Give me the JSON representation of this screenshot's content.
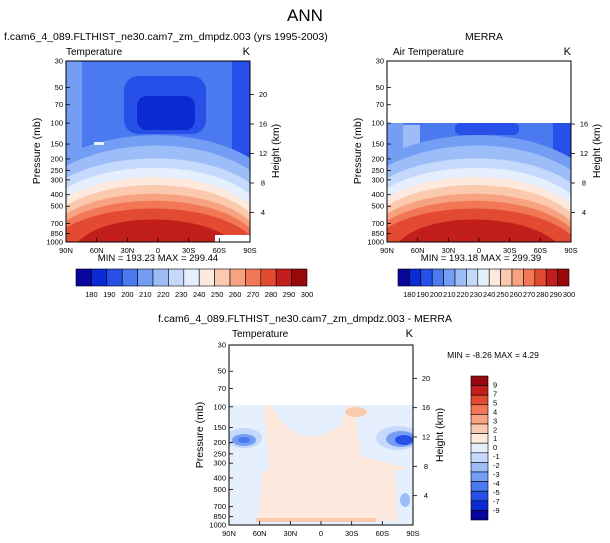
{
  "figure_title": "ANN",
  "colors": {
    "temperature_scale": [
      "#07059c",
      "#0c2ad1",
      "#2650e8",
      "#4b79f0",
      "#739ef4",
      "#9cbdf7",
      "#c4d9fb",
      "#e6effd",
      "#fde9dd",
      "#fbc9ae",
      "#f7a382",
      "#f27757",
      "#e24a32",
      "#c21e1c",
      "#98070c"
    ],
    "difference_scale": [
      "#07059c",
      "#0c2ad1",
      "#2650e8",
      "#4b79f0",
      "#739ef4",
      "#9cbdf7",
      "#c4d9fb",
      "#e6effd",
      "#fde9dd",
      "#fbc9ae",
      "#f7a382",
      "#f27757",
      "#e24a32",
      "#c21e1c",
      "#98070c"
    ]
  },
  "chart_data": [
    {
      "type": "heatmap",
      "panel": "model",
      "title": "f.cam6_4_089.FLTHIST_ne30.cam7_zm_dmpdz.003 (yrs 1995-2003)",
      "left_label": "Temperature",
      "right_label": "K",
      "ylabel": "Pressure (mb)",
      "ylabel_right": "Height (km)",
      "x_ticks": [
        "90N",
        "60N",
        "30N",
        "0",
        "30S",
        "60S",
        "90S"
      ],
      "y_ticks": [
        30,
        50,
        70,
        100,
        150,
        200,
        250,
        300,
        400,
        500,
        700,
        850,
        1000
      ],
      "height_ticks": [
        20,
        16,
        12,
        8,
        4
      ],
      "stats": "MIN = 193.23  MAX = 299.44",
      "min": 193.23,
      "max": 299.44
    },
    {
      "type": "heatmap",
      "panel": "obs",
      "title": "MERRA",
      "left_label": "Air Temperature",
      "right_label": "K",
      "ylabel": "Pressure (mb)",
      "ylabel_right": "Height (km)",
      "x_ticks": [
        "90N",
        "60N",
        "30N",
        "0",
        "30S",
        "60S",
        "90S"
      ],
      "y_ticks": [
        30,
        50,
        70,
        100,
        150,
        200,
        250,
        300,
        400,
        500,
        700,
        850,
        1000
      ],
      "height_ticks": [
        16,
        12,
        8,
        4
      ],
      "stats": "MIN = 193.18  MAX = 299.39",
      "min": 193.18,
      "max": 299.39,
      "data_top_mb": 100
    },
    {
      "type": "heatmap",
      "panel": "difference",
      "title": "f.cam6_4_089.FLTHIST_ne30.cam7_zm_dmpdz.003 - MERRA",
      "left_label": "Temperature",
      "right_label": "K",
      "ylabel": "Pressure (mb)",
      "ylabel_right": "Height (km)",
      "x_ticks": [
        "90N",
        "60N",
        "30N",
        "0",
        "30S",
        "60S",
        "90S"
      ],
      "y_ticks": [
        30,
        50,
        70,
        100,
        150,
        200,
        250,
        300,
        400,
        500,
        700,
        850,
        1000
      ],
      "height_ticks": [
        20,
        16,
        12,
        8,
        4
      ],
      "stats": "MIN =  -8.26  MAX =   4.29",
      "min": -8.26,
      "max": 4.29,
      "data_top_mb": 100
    }
  ],
  "colorbar_temperature": {
    "labels": [
      "180",
      "190",
      "200",
      "210",
      "220",
      "230",
      "240",
      "250",
      "260",
      "270",
      "280",
      "290",
      "300"
    ]
  },
  "colorbar_difference": {
    "labels": [
      "9",
      "7",
      "5",
      "4",
      "3",
      "2",
      "1",
      "0",
      "-1",
      "-2",
      "-3",
      "-4",
      "-5",
      "-7",
      "-9"
    ]
  }
}
